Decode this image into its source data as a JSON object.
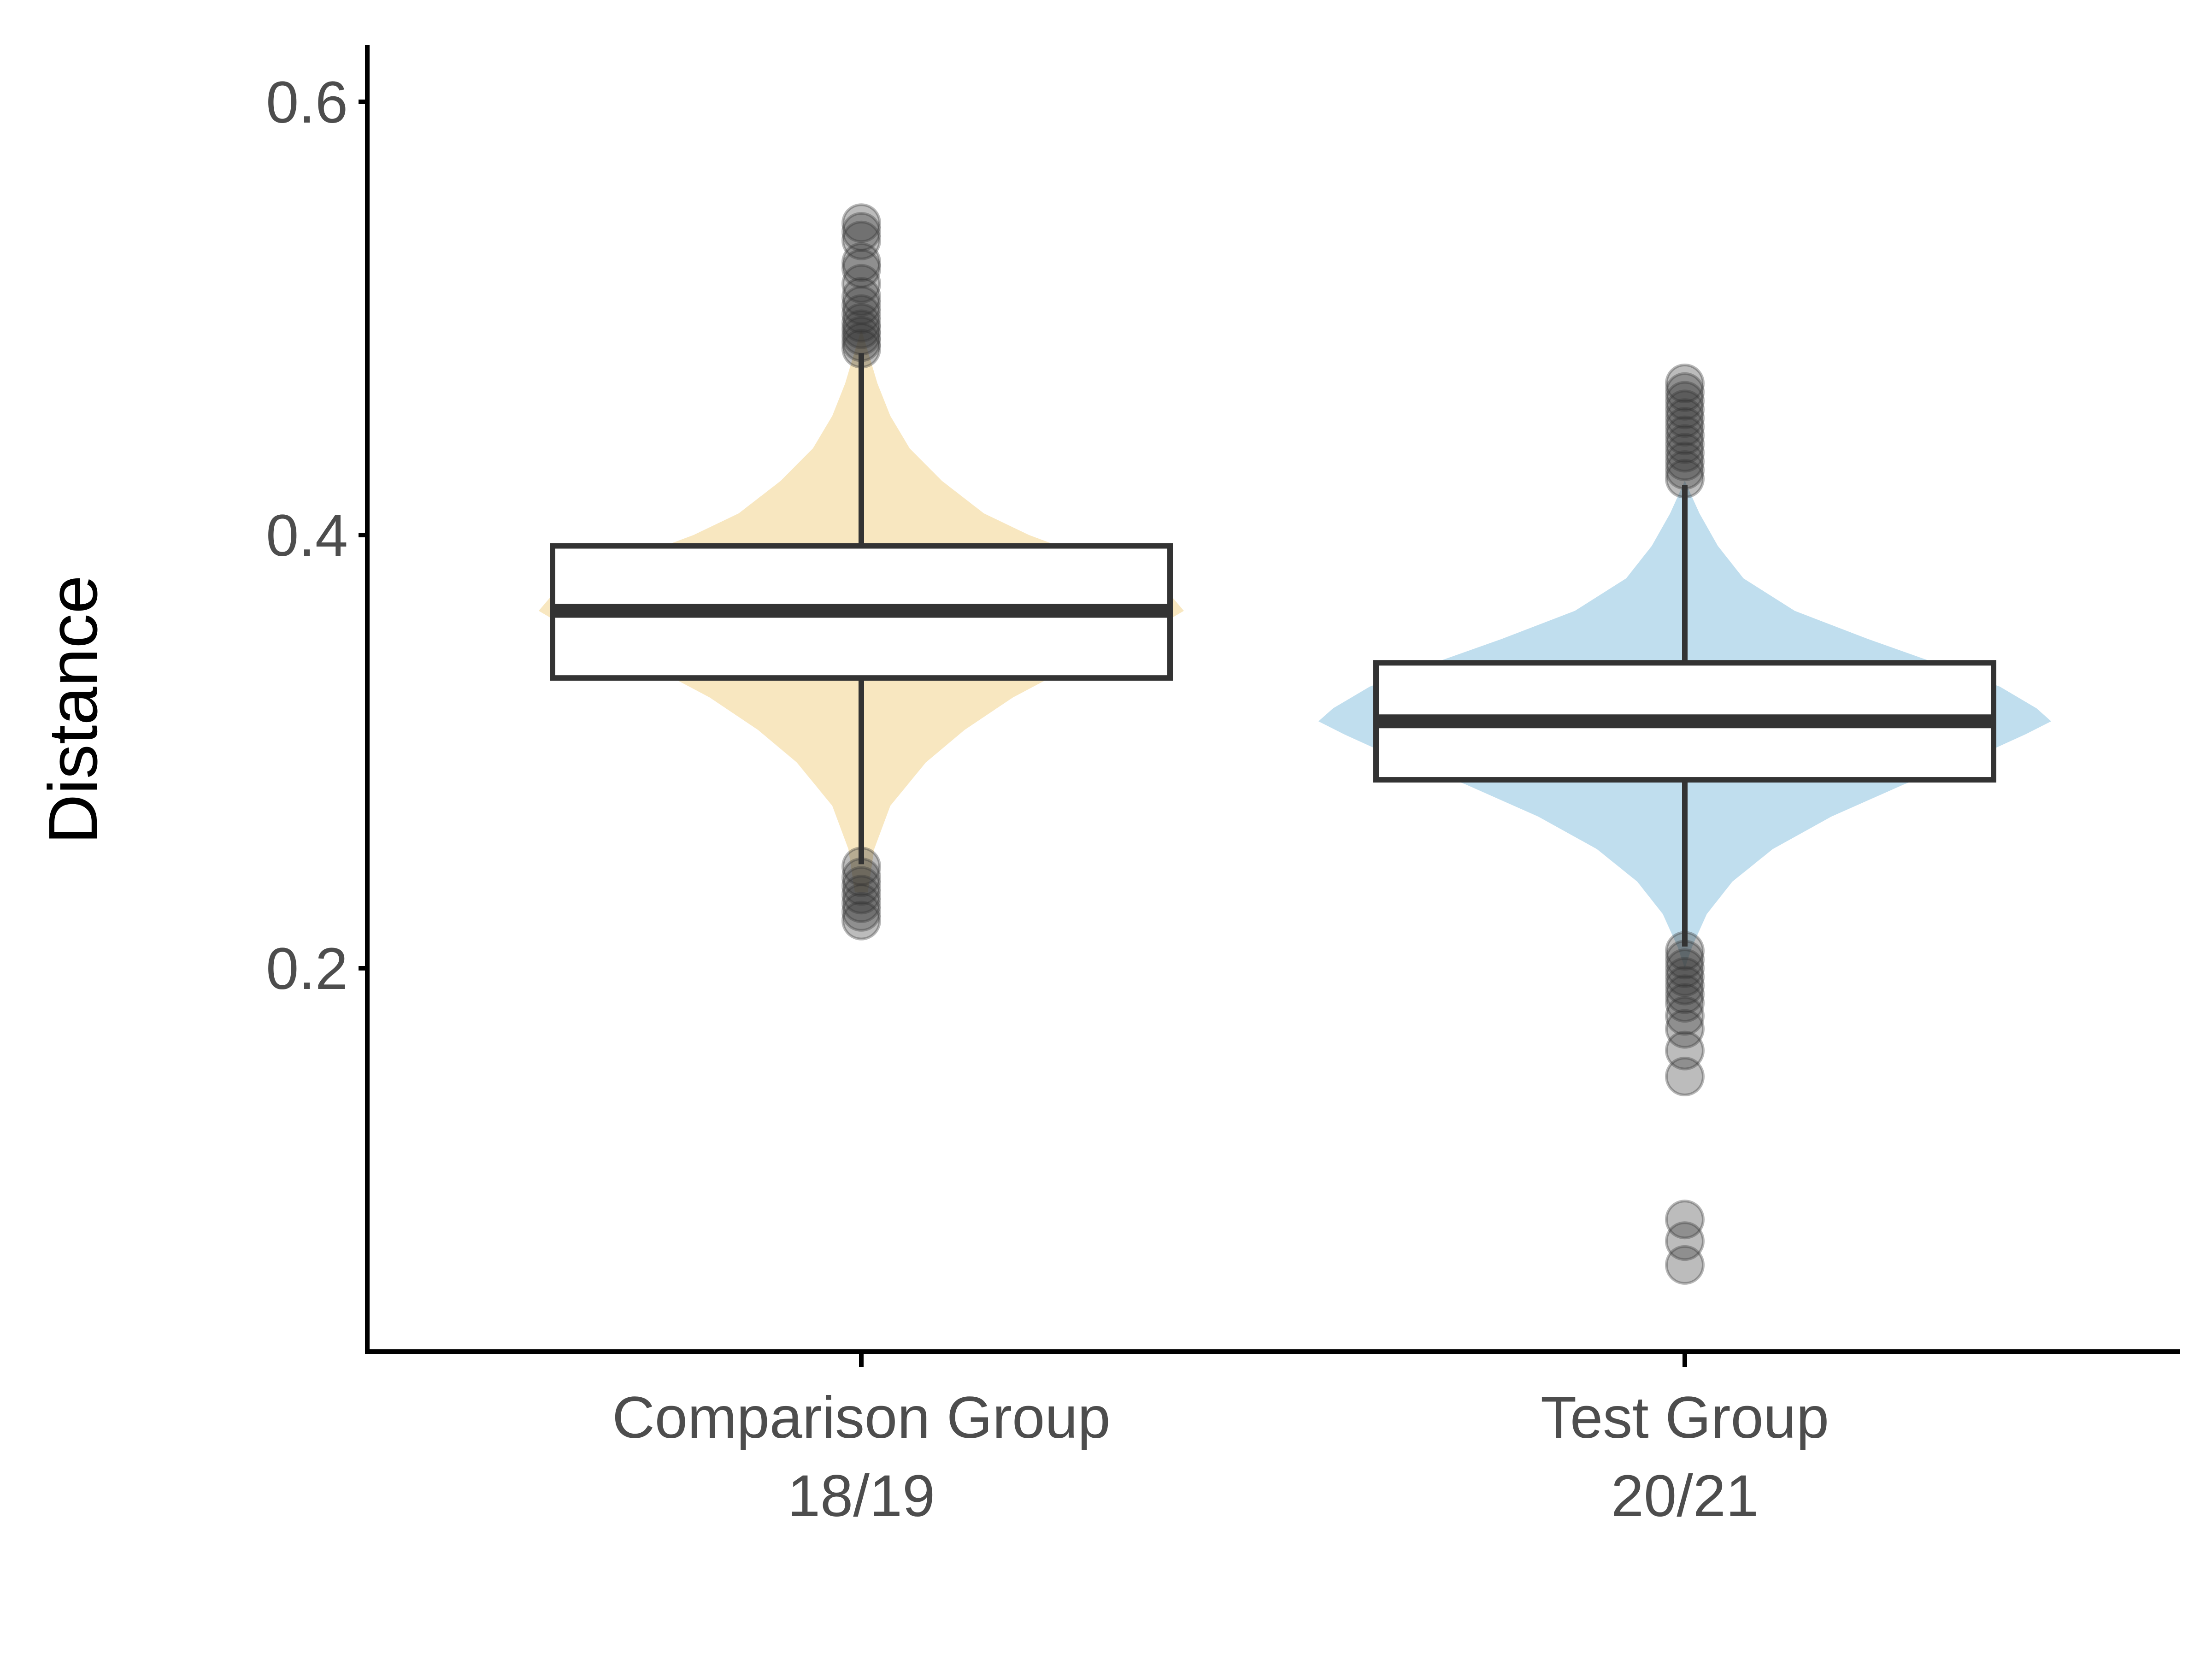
{
  "chart_data": {
    "type": "violin-box",
    "title": "",
    "xlabel": "",
    "ylabel": "Distance",
    "ylim": [
      0.025,
      0.625
    ],
    "yticks": [
      0.2,
      0.4,
      0.6
    ],
    "ytick_labels": [
      "0.2",
      "0.4",
      "0.6"
    ],
    "grid": false,
    "legend": "none",
    "categories": [
      {
        "line1": "Comparison Group",
        "line2": "18/19"
      },
      {
        "line1": "Test Group",
        "line2": "20/21"
      }
    ],
    "groups": [
      {
        "color": "#f8e7c0",
        "box": {
          "q1": 0.334,
          "median": 0.365,
          "q3": 0.395,
          "whisker_low": 0.248,
          "whisker_high": 0.484
        },
        "violin": [
          [
            0.235,
            0.02
          ],
          [
            0.255,
            0.04
          ],
          [
            0.275,
            0.09
          ],
          [
            0.295,
            0.2
          ],
          [
            0.31,
            0.32
          ],
          [
            0.325,
            0.47
          ],
          [
            0.34,
            0.66
          ],
          [
            0.35,
            0.8
          ],
          [
            0.358,
            0.92
          ],
          [
            0.365,
            1.0
          ],
          [
            0.372,
            0.96
          ],
          [
            0.38,
            0.86
          ],
          [
            0.39,
            0.7
          ],
          [
            0.4,
            0.52
          ],
          [
            0.41,
            0.38
          ],
          [
            0.425,
            0.25
          ],
          [
            0.44,
            0.15
          ],
          [
            0.455,
            0.09
          ],
          [
            0.47,
            0.05
          ],
          [
            0.485,
            0.02
          ],
          [
            0.495,
            0.0
          ]
        ],
        "outliers": [
          0.544,
          0.54,
          0.536,
          0.526,
          0.523,
          0.516,
          0.51,
          0.506,
          0.502,
          0.498,
          0.495,
          0.492,
          0.489,
          0.486,
          0.247,
          0.242,
          0.238,
          0.234,
          0.23,
          0.226,
          0.222
        ]
      },
      {
        "color": "#c0deee",
        "box": {
          "q1": 0.287,
          "median": 0.314,
          "q3": 0.341,
          "whisker_low": 0.21,
          "whisker_high": 0.423
        },
        "violin": [
          [
            0.2,
            0.0
          ],
          [
            0.21,
            0.02
          ],
          [
            0.225,
            0.06
          ],
          [
            0.24,
            0.13
          ],
          [
            0.255,
            0.24
          ],
          [
            0.27,
            0.4
          ],
          [
            0.285,
            0.6
          ],
          [
            0.298,
            0.8
          ],
          [
            0.308,
            0.93
          ],
          [
            0.314,
            1.0
          ],
          [
            0.32,
            0.96
          ],
          [
            0.33,
            0.86
          ],
          [
            0.34,
            0.7
          ],
          [
            0.352,
            0.5
          ],
          [
            0.365,
            0.3
          ],
          [
            0.38,
            0.16
          ],
          [
            0.395,
            0.09
          ],
          [
            0.41,
            0.04
          ],
          [
            0.425,
            0.0
          ]
        ],
        "outliers": [
          0.47,
          0.466,
          0.462,
          0.458,
          0.454,
          0.45,
          0.446,
          0.442,
          0.438,
          0.434,
          0.43,
          0.426,
          0.208,
          0.204,
          0.2,
          0.196,
          0.192,
          0.188,
          0.184,
          0.178,
          0.172,
          0.162,
          0.15,
          0.084,
          0.074,
          0.063
        ]
      }
    ]
  }
}
